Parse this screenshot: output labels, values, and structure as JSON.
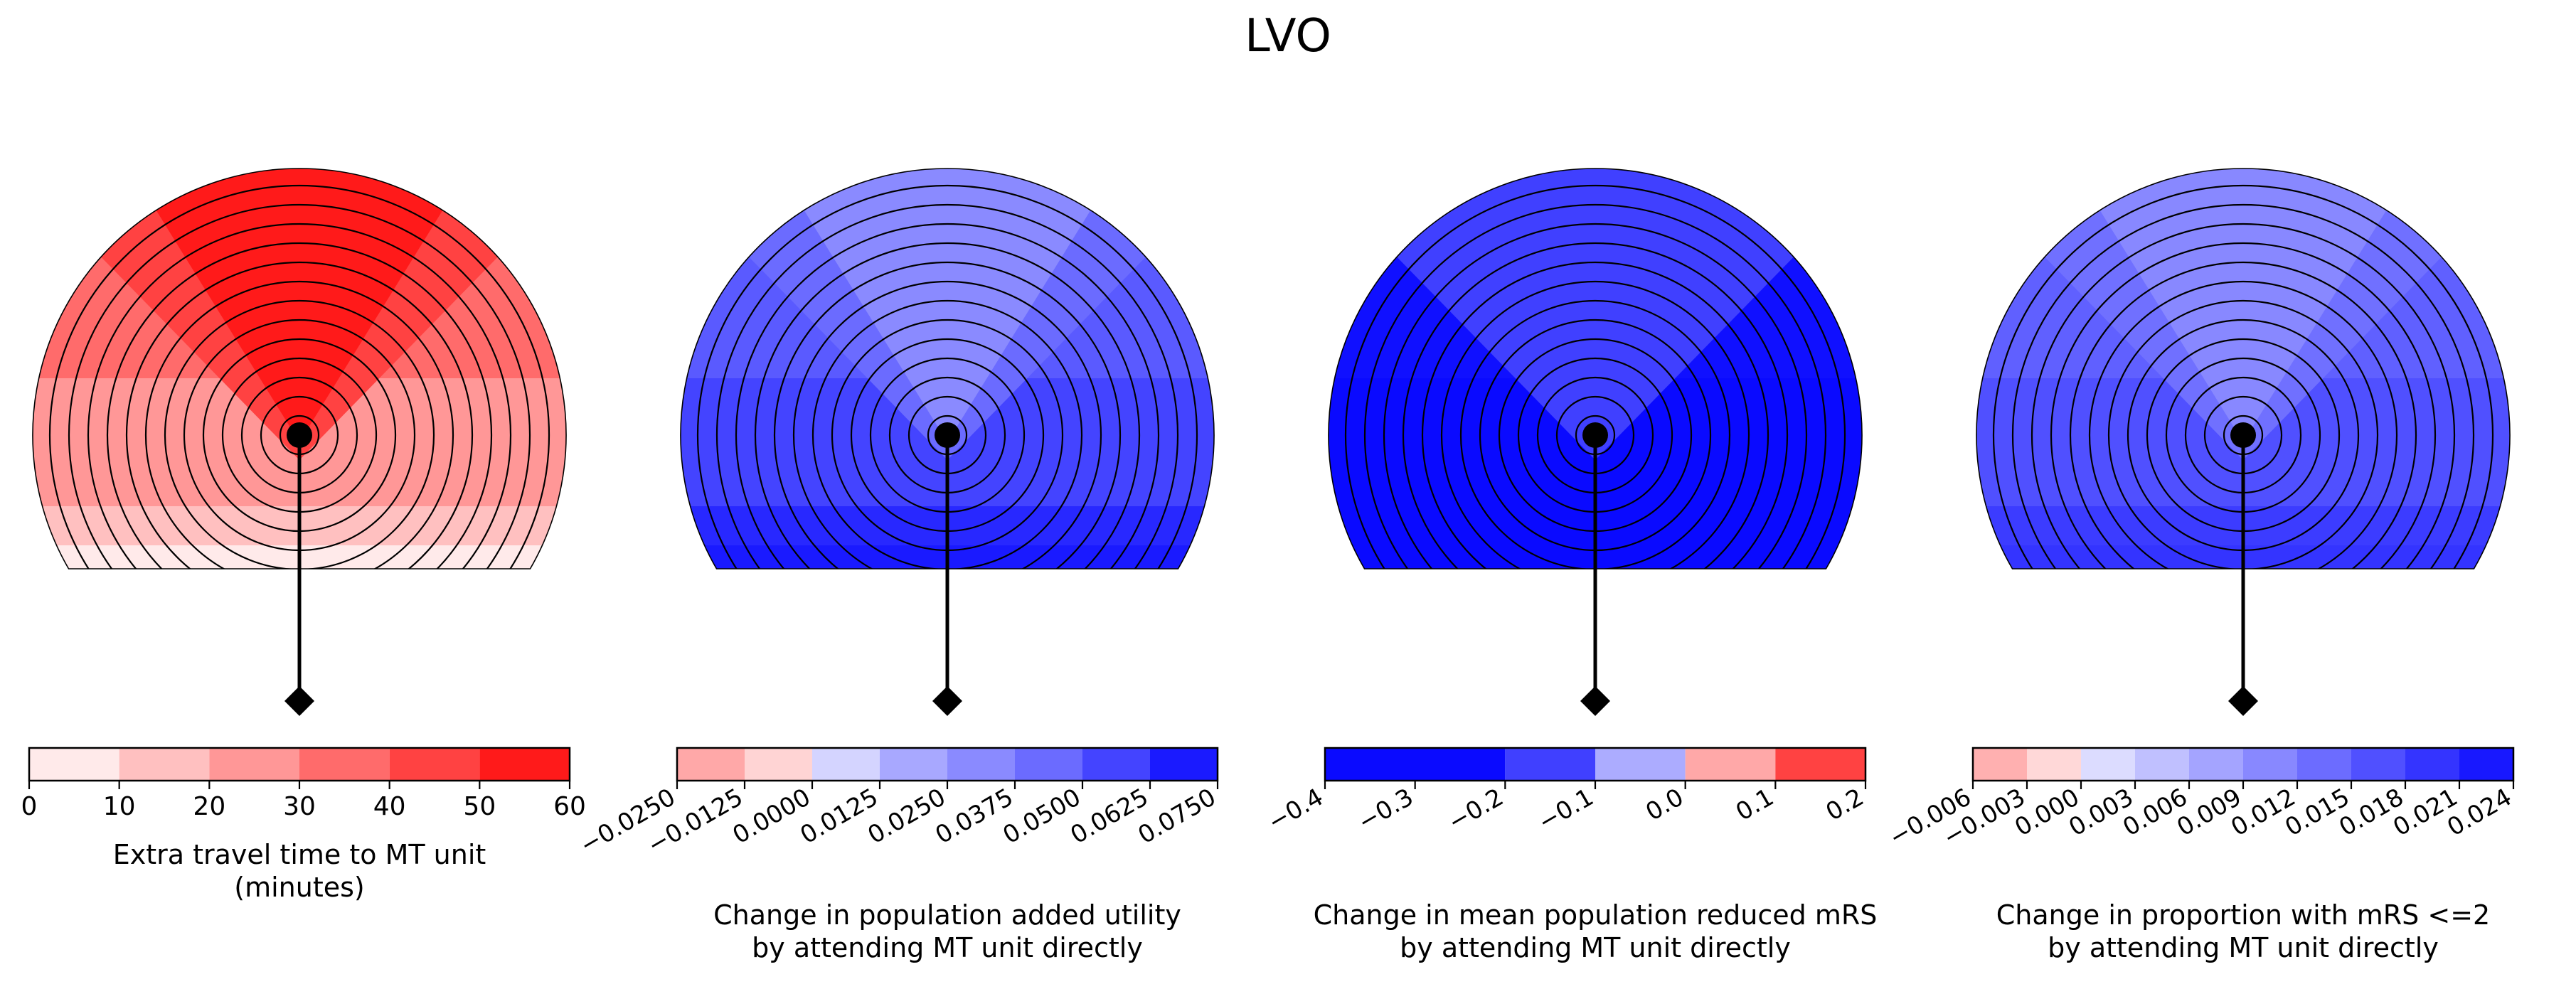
{
  "figure_title": "LVO",
  "chart_data": [
    {
      "type": "heatmap",
      "name": "travel-time",
      "cbar_label": "Extra travel time to MT unit\n(minutes)",
      "tick_labels": [
        "0",
        "10",
        "20",
        "30",
        "40",
        "50",
        "60"
      ],
      "tick_rotated": false,
      "colors": [
        "#ffeaea",
        "#ffc0c0",
        "#ff9797",
        "#ff6b6b",
        "#ff4242",
        "#ff1a1a"
      ],
      "sector_colors": {
        "top": "#ff1a1a",
        "upper": "#ff4242",
        "mid": "#ff6b6b",
        "lower": "#ff9797",
        "bottom": "#ffc0c0",
        "base": "#ffeaea"
      },
      "value_range": [
        0,
        60
      ]
    },
    {
      "type": "heatmap",
      "name": "added-utility",
      "cbar_label": "Change in population added utility\nby attending MT unit directly",
      "tick_labels": [
        "−0.0250",
        "−0.0125",
        "0.0000",
        "0.0125",
        "0.0250",
        "0.0375",
        "0.0500",
        "0.0625",
        "0.0750"
      ],
      "tick_rotated": true,
      "colors": [
        "#ffa8a8",
        "#ffd4d4",
        "#d4d4ff",
        "#a8a8ff",
        "#8a8aff",
        "#6b6bff",
        "#4444ff",
        "#1a1aff"
      ],
      "sector_colors": {
        "top": "#8a8aff",
        "upper": "#6b6bff",
        "mid": "#5a5aff",
        "lower": "#4444ff",
        "bottom": "#2828ff",
        "base": "#1a1aff"
      },
      "value_range": [
        -0.025,
        0.075
      ],
      "zero_index": 2
    },
    {
      "type": "heatmap",
      "name": "mean-mrs",
      "cbar_label": "Change in mean population reduced mRS\nby attending MT unit directly",
      "tick_labels": [
        "−0.4",
        "−0.3",
        "−0.2",
        "−0.1",
        "0.0",
        "0.1",
        "0.2"
      ],
      "tick_rotated": true,
      "colors": [
        "#0a0aff",
        "#0a0aff",
        "#4040ff",
        "#acacff",
        "#ffa8a8",
        "#ff4242"
      ],
      "sector_colors": {
        "top": "#4040ff",
        "upper": "#4040ff",
        "mid": "#1010ff",
        "lower": "#0a0aff",
        "bottom": "#0a0aff",
        "base": "#0a0aff"
      },
      "value_range": [
        -0.4,
        0.2
      ],
      "zero_index": 4
    },
    {
      "type": "heatmap",
      "name": "mrs-le2",
      "cbar_label": "Change in proportion with mRS <=2\nby attending MT unit directly",
      "tick_labels": [
        "−0.006",
        "−0.003",
        "0.000",
        "0.003",
        "0.006",
        "0.009",
        "0.012",
        "0.015",
        "0.018",
        "0.021",
        "0.024"
      ],
      "tick_rotated": true,
      "colors": [
        "#ffb0b0",
        "#ffd8d8",
        "#dcdcff",
        "#c0c0ff",
        "#a4a4ff",
        "#8888ff",
        "#6c6cff",
        "#5050ff",
        "#3434ff",
        "#1818ff"
      ],
      "sector_colors": {
        "top": "#8888ff",
        "upper": "#7070ff",
        "mid": "#6060ff",
        "lower": "#5050ff",
        "bottom": "#3c3cff",
        "base": "#3434ff"
      },
      "value_range": [
        -0.006,
        0.024
      ],
      "zero_index": 2
    }
  ]
}
